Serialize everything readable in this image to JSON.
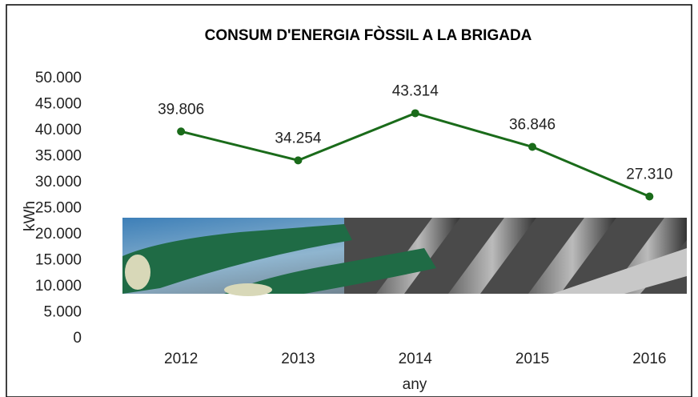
{
  "chart_data": {
    "type": "line",
    "title": "CONSUM D'ENERGIA FÒSSIL A LA BRIGADA",
    "x_label": "any",
    "y_label": "kWh",
    "categories": [
      "2012",
      "2013",
      "2014",
      "2015",
      "2016"
    ],
    "series": [
      {
        "name": "kWh",
        "color": "#1a6b1a",
        "values": [
          39806,
          34254,
          43314,
          36846,
          27310
        ],
        "value_labels": [
          "39.806",
          "34.254",
          "43.314",
          "36.846",
          "27.310"
        ]
      }
    ],
    "ylim": [
      0,
      50000
    ],
    "yticks": [
      {
        "value": 0,
        "label": "0"
      },
      {
        "value": 5000,
        "label": "5.000"
      },
      {
        "value": 10000,
        "label": "10.000"
      },
      {
        "value": 15000,
        "label": "15.000"
      },
      {
        "value": 20000,
        "label": "20.000"
      },
      {
        "value": 25000,
        "label": "25.000"
      },
      {
        "value": 30000,
        "label": "30.000"
      },
      {
        "value": 35000,
        "label": "35.000"
      },
      {
        "value": 40000,
        "label": "40.000"
      },
      {
        "value": 45000,
        "label": "45.000"
      },
      {
        "value": 50000,
        "label": "50.000"
      }
    ],
    "grid": false
  }
}
